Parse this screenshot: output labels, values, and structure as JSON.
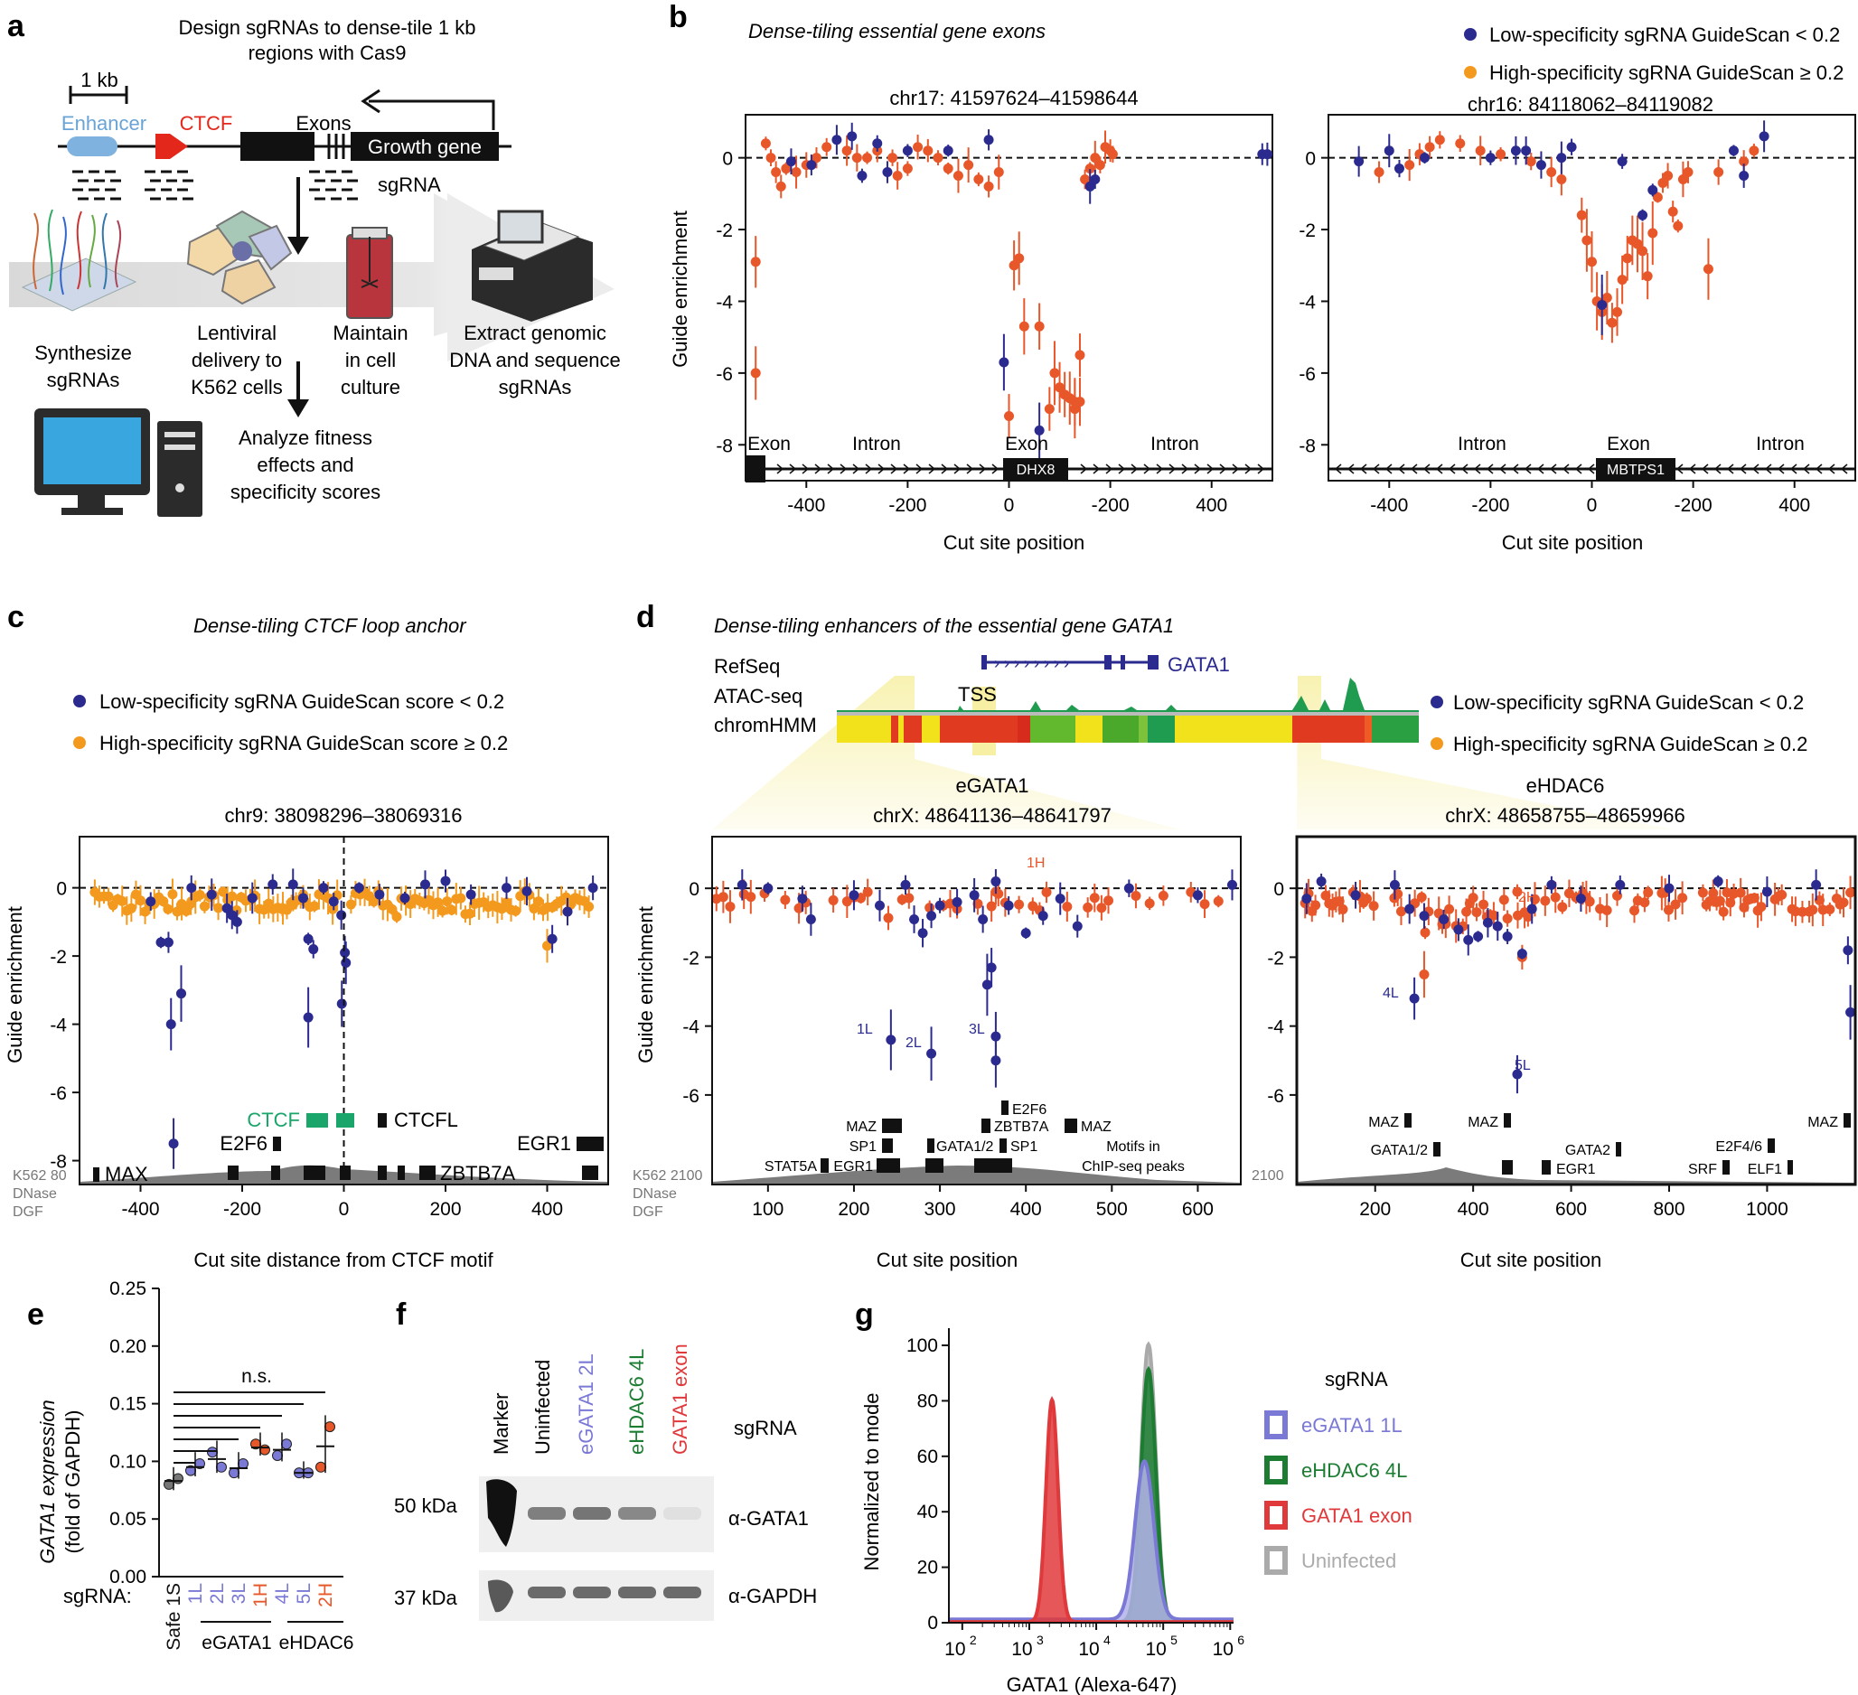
{
  "colors": {
    "low": "#2b2a8f",
    "high_orange": "#f39a1e",
    "high_red": "#e8572a",
    "ctcf_green": "#1aa56b",
    "egata": "#7b79d6",
    "ehdac": "#1c7d32",
    "gata_exon": "#e0393b",
    "uninf": "#aaaaaa",
    "dgf": "#7b7b7b"
  },
  "panel_a": {
    "letter": "a",
    "title_line1": "Design sgRNAs to dense-tile 1 kb",
    "title_line2": "regions with Cas9",
    "scale": "1 kb",
    "enhancer": "Enhancer",
    "ctcf": "CTCF",
    "exons": "Exons",
    "growth_gene": "Growth gene",
    "sgrna": "sgRNA",
    "step1": [
      "Synthesize",
      "sgRNAs"
    ],
    "step2": [
      "Lentiviral",
      "delivery to",
      "K562 cells"
    ],
    "step3": [
      "Maintain",
      "in cell",
      "culture"
    ],
    "step4": [
      "Extract genomic",
      "DNA and sequence",
      "sgRNAs"
    ],
    "step5": [
      "Analyze fitness",
      "effects and",
      "specificity scores"
    ]
  },
  "panel_b": {
    "letter": "b",
    "title": "Dense-tiling essential gene exons",
    "legend_low": "Low-specificity sgRNA GuideScan < 0.2",
    "legend_high": "High-specificity sgRNA GuideScan ≥ 0.2",
    "ylabel": "Guide enrichment",
    "xlabel": "Cut site position",
    "left": {
      "coord": "chr17: 41597624–41598644",
      "gene": "DHX8",
      "annots": [
        "Exon",
        "Intron",
        "Exon",
        "Intron"
      ]
    },
    "right": {
      "coord": "chr16: 84118062–84119082",
      "gene": "MBTPS1",
      "annots": [
        "Intron",
        "Exon",
        "Intron"
      ]
    }
  },
  "panel_c": {
    "letter": "c",
    "title": "Dense-tiling CTCF loop anchor",
    "legend_low": "Low-specificity sgRNA GuideScan score < 0.2",
    "legend_high": "High-specificity sgRNA GuideScan score ≥ 0.2",
    "coord": "chr9: 38098296–38069316",
    "ylabel": "Guide enrichment",
    "xlabel": "Cut site distance from CTCF motif",
    "motifs": [
      "CTCF",
      "CTCFL",
      "E2F6",
      "EGR1",
      "MAX",
      "ZBTB7A"
    ],
    "dgf": [
      "K562 80",
      "DNase",
      "DGF"
    ]
  },
  "panel_d": {
    "letter": "d",
    "title": "Dense-tiling enhancers of the essential gene GATA1",
    "tracks": [
      "RefSeq",
      "ATAC-seq",
      "chromHMM"
    ],
    "gene": "GATA1",
    "tss": "TSS",
    "legend_low": "Low-specificity sgRNA GuideScan < 0.2",
    "legend_high": "High-specificity sgRNA GuideScan ≥ 0.2",
    "ylabel": "Guide enrichment",
    "xlabel": "Cut site position",
    "left": {
      "name": "eGATA1",
      "coord": "chrX: 48641136–48641797",
      "labels": [
        "1H",
        "1L",
        "2L",
        "3L"
      ],
      "motifs": [
        "E2F6",
        "MAZ",
        "ZBTB7A",
        "MAZ",
        "SP1",
        "GATA1/2",
        "SP1",
        "STAT5A",
        "EGR1"
      ],
      "note": [
        "Motifs in",
        "ChIP-seq peaks"
      ],
      "dgf": [
        "K562 2100",
        "DNase",
        "DGF"
      ]
    },
    "right": {
      "name": "eHDAC6",
      "coord": "chrX: 48658755–48659966",
      "labels": [
        "2H",
        "4L",
        "5L"
      ],
      "motifs": [
        "MAZ",
        "MAZ",
        "MAZ",
        "GATA1/2",
        "GATA2",
        "E2F4/6",
        "EGR1",
        "SRF",
        "ELF1"
      ],
      "dgf": "2100"
    }
  },
  "panel_e": {
    "letter": "e",
    "ylabel": [
      "GATA1 expression",
      "(fold of GAPDH)"
    ],
    "ns": "n.s.",
    "xprefix": "sgRNA:",
    "categories": [
      "Safe 1S",
      "1L",
      "2L",
      "3L",
      "1H",
      "4L",
      "5L",
      "2H"
    ],
    "groups": [
      "eGATA1",
      "eHDAC6"
    ]
  },
  "panel_f": {
    "letter": "f",
    "lanes": [
      "Marker",
      "Uninfected",
      "eGATA1 2L",
      "eHDAC6 4L",
      "GATA1 exon"
    ],
    "sgrna": "sgRNA",
    "kda": [
      "50 kDa",
      "37 kDa"
    ],
    "antibodies": [
      "α-GATA1",
      "α-GAPDH"
    ],
    "band_intensity_gata1": [
      0.6,
      0.65,
      0.55,
      0.08
    ],
    "band_intensity_gapdh": [
      0.7,
      0.7,
      0.7,
      0.7
    ]
  },
  "panel_g": {
    "letter": "g",
    "ylabel": "Normalized to mode",
    "xlabel": "GATA1 (Alexa-647)",
    "legend_title": "sgRNA",
    "legend": [
      "eGATA1 1L",
      "eHDAC6 4L",
      "GATA1 exon",
      "Uninfected"
    ]
  },
  "chart_data": [
    {
      "id": "b-left",
      "type": "scatter",
      "title": "chr17: 41597624–41598644",
      "xlabel": "Cut site position",
      "ylabel": "Guide enrichment",
      "xlim": [
        -520,
        520
      ],
      "ylim": [
        -9,
        1.2
      ],
      "xticks": [
        -400,
        -200,
        0,
        -200,
        400
      ],
      "yticks": [
        0,
        -2,
        -4,
        -6,
        -8
      ],
      "high": [
        [
          -500,
          -2.9
        ],
        [
          -500,
          -6.0
        ],
        [
          -480,
          0.4
        ],
        [
          -470,
          0
        ],
        [
          -460,
          -0.4
        ],
        [
          -450,
          -0.8
        ],
        [
          -440,
          -0.3
        ],
        [
          -420,
          -0.4
        ],
        [
          -400,
          -0.2
        ],
        [
          -380,
          0
        ],
        [
          -360,
          0.3
        ],
        [
          -320,
          0.2
        ],
        [
          -300,
          0
        ],
        [
          -280,
          0
        ],
        [
          -260,
          0.2
        ],
        [
          -230,
          0
        ],
        [
          -220,
          -0.5
        ],
        [
          -200,
          -0.3
        ],
        [
          -180,
          0.3
        ],
        [
          -160,
          0.2
        ],
        [
          -140,
          0
        ],
        [
          -120,
          -0.3
        ],
        [
          -100,
          -0.5
        ],
        [
          -80,
          -0.2
        ],
        [
          -60,
          -0.6
        ],
        [
          -40,
          -0.8
        ],
        [
          -20,
          -0.4
        ],
        [
          0,
          -7.2
        ],
        [
          10,
          -3.0
        ],
        [
          20,
          -2.8
        ],
        [
          30,
          -4.7
        ],
        [
          60,
          -4.7
        ],
        [
          80,
          -7.0
        ],
        [
          90,
          -6.0
        ],
        [
          100,
          -6.4
        ],
        [
          110,
          -6.6
        ],
        [
          120,
          -6.7
        ],
        [
          130,
          -6.8
        ],
        [
          140,
          -5.5
        ],
        [
          130,
          -7.0
        ],
        [
          140,
          -6.8
        ],
        [
          150,
          -0.6
        ],
        [
          160,
          -0.3
        ],
        [
          170,
          0
        ],
        [
          180,
          -0.2
        ],
        [
          190,
          0.3
        ],
        [
          200,
          0.2
        ],
        [
          205,
          0.1
        ]
      ],
      "low": [
        [
          -430,
          -0.1
        ],
        [
          -390,
          -0.2
        ],
        [
          -340,
          0.5
        ],
        [
          -310,
          0.6
        ],
        [
          -290,
          -0.5
        ],
        [
          -260,
          0.4
        ],
        [
          -240,
          -0.4
        ],
        [
          -200,
          0.2
        ],
        [
          -120,
          0.2
        ],
        [
          -40,
          0.5
        ],
        [
          -10,
          -5.7
        ],
        [
          60,
          -7.6
        ],
        [
          160,
          -0.8
        ],
        [
          170,
          -0.6
        ],
        [
          500,
          0.1
        ],
        [
          510,
          0.1
        ]
      ]
    },
    {
      "id": "b-right",
      "type": "scatter",
      "title": "chr16: 84118062–84119082",
      "xlabel": "Cut site position",
      "ylabel": "Guide enrichment",
      "xlim": [
        -520,
        520
      ],
      "ylim": [
        -9,
        1.2
      ],
      "xticks": [
        -400,
        -200,
        0,
        -200,
        400
      ],
      "yticks": [
        0,
        -2,
        -4,
        -6,
        -8
      ],
      "high": [
        [
          -420,
          -0.4
        ],
        [
          -360,
          -0.2
        ],
        [
          -340,
          0.1
        ],
        [
          -320,
          0.3
        ],
        [
          -300,
          0.5
        ],
        [
          -260,
          0.4
        ],
        [
          -220,
          0.2
        ],
        [
          -180,
          0.1
        ],
        [
          -120,
          -0.1
        ],
        [
          -80,
          -0.4
        ],
        [
          -60,
          -0.6
        ],
        [
          -20,
          -1.6
        ],
        [
          -10,
          -2.3
        ],
        [
          0,
          -2.9
        ],
        [
          10,
          -4.0
        ],
        [
          20,
          -4.3
        ],
        [
          30,
          -3.9
        ],
        [
          40,
          -4.6
        ],
        [
          50,
          -4.3
        ],
        [
          60,
          -3.4
        ],
        [
          70,
          -2.8
        ],
        [
          80,
          -2.3
        ],
        [
          90,
          -2.4
        ],
        [
          100,
          -2.6
        ],
        [
          110,
          -3.3
        ],
        [
          120,
          -2.1
        ],
        [
          130,
          -1.1
        ],
        [
          140,
          -0.7
        ],
        [
          150,
          -0.5
        ],
        [
          160,
          -1.5
        ],
        [
          170,
          -1.9
        ],
        [
          180,
          -0.6
        ],
        [
          190,
          -0.4
        ],
        [
          230,
          -3.1
        ],
        [
          250,
          -0.4
        ],
        [
          300,
          -0.1
        ],
        [
          320,
          0.2
        ]
      ],
      "low": [
        [
          -460,
          -0.1
        ],
        [
          -400,
          0.2
        ],
        [
          -380,
          -0.3
        ],
        [
          -330,
          0
        ],
        [
          -200,
          0
        ],
        [
          -150,
          0.2
        ],
        [
          -130,
          0.2
        ],
        [
          -100,
          -0.2
        ],
        [
          -60,
          0
        ],
        [
          -40,
          0.3
        ],
        [
          20,
          -4.1
        ],
        [
          60,
          -0.1
        ],
        [
          100,
          -1.6
        ],
        [
          120,
          -0.9
        ],
        [
          280,
          0.2
        ],
        [
          300,
          -0.5
        ],
        [
          340,
          0.6
        ]
      ]
    },
    {
      "id": "c",
      "type": "scatter",
      "title": "chr9: 38098296–38069316",
      "xlabel": "Cut site distance from CTCF motif",
      "ylabel": "Guide enrichment",
      "xlim": [
        -520,
        520
      ],
      "ylim": [
        -8.7,
        1.5
      ],
      "xticks": [
        -400,
        -200,
        0,
        200,
        400
      ],
      "yticks": [
        0,
        -2,
        -4,
        -6,
        -8
      ]
    },
    {
      "id": "d-left",
      "type": "scatter",
      "title": "chrX: 48641136–48641797",
      "xlabel": "Cut site position",
      "ylabel": "Guide enrichment",
      "xlim": [
        35,
        650
      ],
      "ylim": [
        -8.6,
        1.5
      ],
      "xticks": [
        100,
        200,
        300,
        400,
        500,
        600
      ],
      "yticks": [
        0,
        -2,
        -4,
        -6
      ],
      "labeled": [
        {
          "label": "1H",
          "x": 365,
          "y": -0.1
        },
        {
          "label": "1L",
          "x": 243,
          "y": -4.4
        },
        {
          "label": "2L",
          "x": 290,
          "y": -4.8
        },
        {
          "label": "3L",
          "x": 365,
          "y": -4.3
        }
      ]
    },
    {
      "id": "d-right",
      "type": "scatter",
      "title": "chrX: 48658755–48659966",
      "xlabel": "Cut site position",
      "ylabel": "Guide enrichment",
      "xlim": [
        40,
        1180
      ],
      "ylim": [
        -8.6,
        1.5
      ],
      "xticks": [
        200,
        400,
        600,
        800,
        1000
      ],
      "yticks": [
        0,
        -2,
        -4,
        -6
      ],
      "labeled": [
        {
          "label": "2H",
          "x": 490,
          "y": -0.1
        },
        {
          "label": "4L",
          "x": 280,
          "y": -3.2
        },
        {
          "label": "5L",
          "x": 490,
          "y": -5.4
        }
      ]
    },
    {
      "id": "e",
      "type": "scatter",
      "title": "",
      "xlabel": "sgRNA",
      "ylabel": "GATA1 expression (fold of GAPDH)",
      "ylim": [
        0,
        0.25
      ],
      "yticks": [
        0.0,
        0.05,
        0.1,
        0.15,
        0.2,
        0.25
      ],
      "categories": [
        "Safe 1S",
        "1L",
        "2L",
        "3L",
        "1H",
        "4L",
        "5L",
        "2H"
      ],
      "points": [
        [
          0.08,
          0.085
        ],
        [
          0.092,
          0.098
        ],
        [
          0.108,
          0.095
        ],
        [
          0.09,
          0.098
        ],
        [
          0.115,
          0.11
        ],
        [
          0.105,
          0.115
        ],
        [
          0.09,
          0.09
        ],
        [
          0.095,
          0.13
        ]
      ],
      "means": [
        0.083,
        0.095,
        0.102,
        0.094,
        0.112,
        0.11,
        0.09,
        0.113
      ]
    },
    {
      "id": "g",
      "type": "area",
      "title": "",
      "xlabel": "GATA1 (Alexa-647)",
      "ylabel": "Normalized to mode",
      "xscale": "log",
      "xlim": [
        1.8,
        6.05
      ],
      "ylim": [
        0,
        100
      ],
      "yticks": [
        0,
        20,
        40,
        60,
        80,
        100
      ],
      "xticks": [
        "10^2",
        "10^3",
        "10^4",
        "10^5",
        "10^6"
      ],
      "series": [
        {
          "name": "Uninfected",
          "peak_log": 4.78,
          "peak": 100,
          "width": 0.11
        },
        {
          "name": "eHDAC6 4L",
          "peak_log": 4.78,
          "peak": 91,
          "width": 0.11
        },
        {
          "name": "eGATA1 1L",
          "peak_log": 4.72,
          "peak": 57,
          "width": 0.14
        },
        {
          "name": "GATA1 exon",
          "peak_log": 3.34,
          "peak": 80,
          "width": 0.09
        }
      ]
    }
  ]
}
